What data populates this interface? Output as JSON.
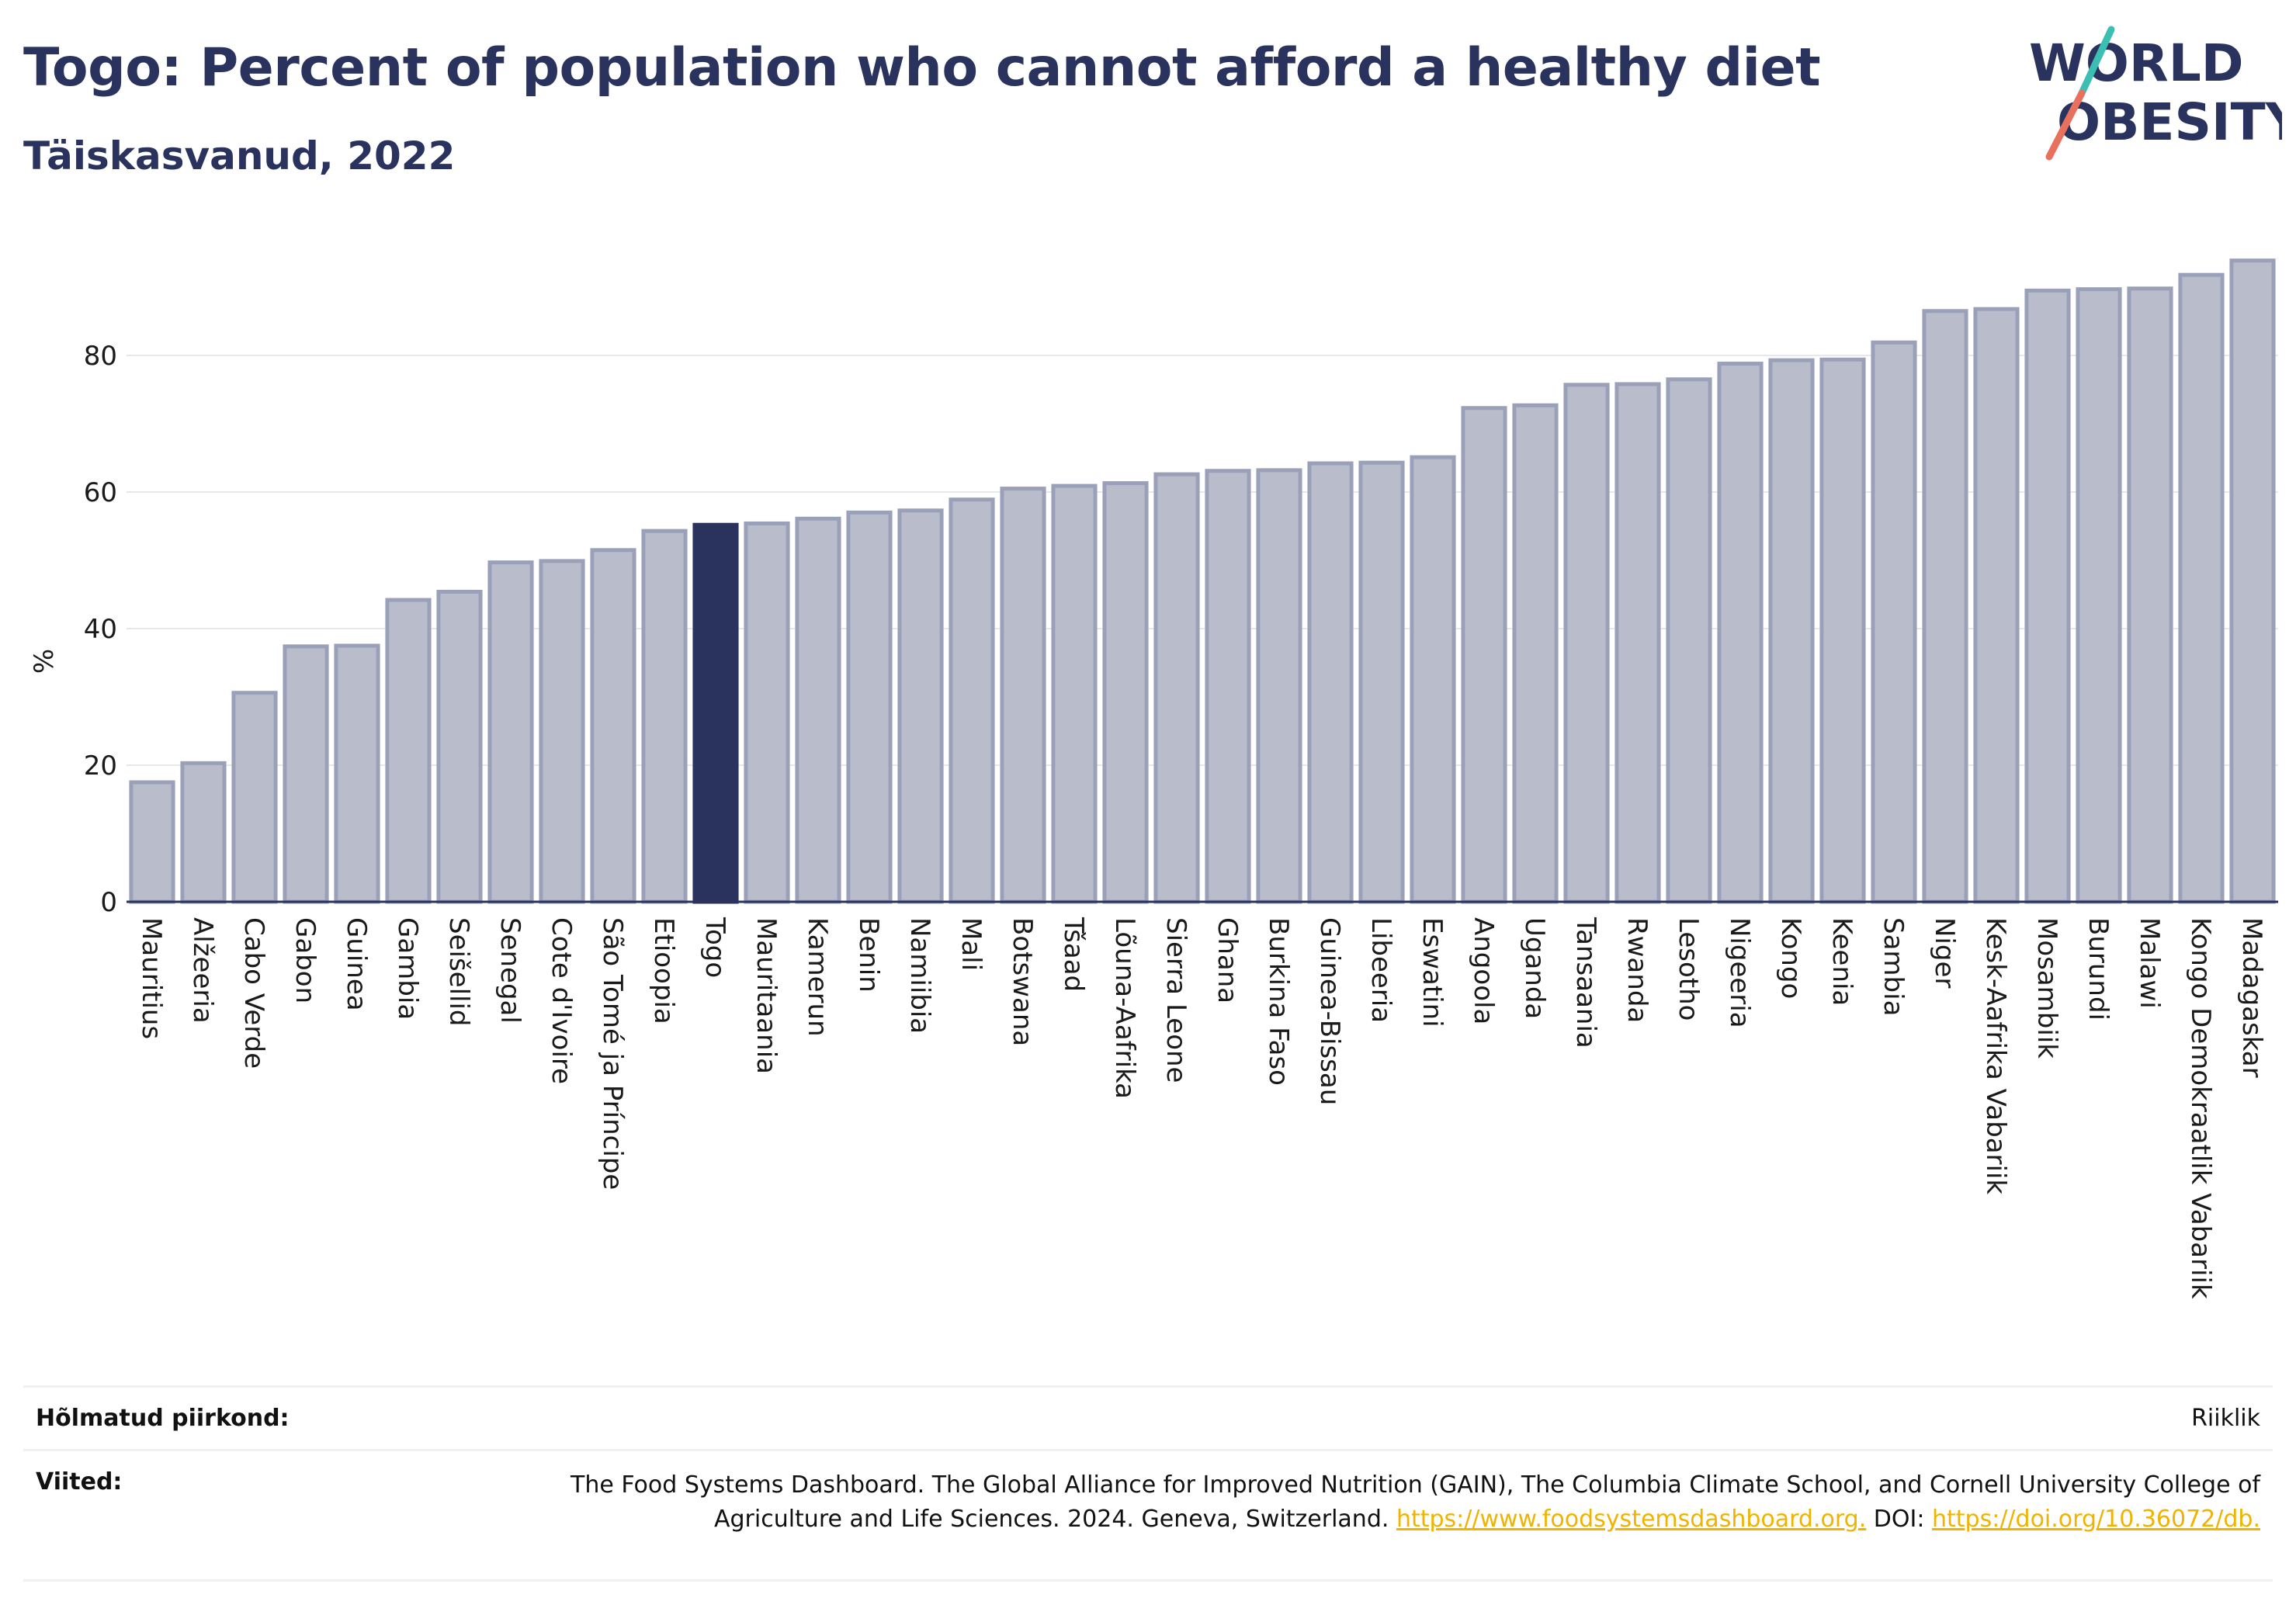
{
  "title": "Togo: Percent of population who cannot afford a healthy diet",
  "subtitle": "Täiskasvanud, 2022",
  "logo": {
    "line1": "WORLD",
    "line2": "OBESITY"
  },
  "colors": {
    "bar": "#b9bccb",
    "bar_stroke": "#9aa0b8",
    "highlight": "#2a335e",
    "grid": "#e6e8ef",
    "link": "#f0b400"
  },
  "chart_data": {
    "type": "bar",
    "ylabel": "%",
    "ylim": [
      0,
      100
    ],
    "yticks": [
      0,
      20,
      40,
      60,
      80
    ],
    "grid": true,
    "highlight": "Togo",
    "categories": [
      "Mauritius",
      "Alžeeria",
      "Cabo Verde",
      "Gabon",
      "Guinea",
      "Gambia",
      "Seišellid",
      "Senegal",
      "Cote d'Ivoire",
      "São Tomé ja Príncipe",
      "Etioopia",
      "Togo",
      "Mauritaania",
      "Kamerun",
      "Benin",
      "Namiibia",
      "Mali",
      "Botswana",
      "Tšaad",
      "Lõuna-Aafrika",
      "Sierra Leone",
      "Ghana",
      "Burkina Faso",
      "Guinea-Bissau",
      "Libeeria",
      "Eswatini",
      "Angoola",
      "Uganda",
      "Tansaania",
      "Rwanda",
      "Lesotho",
      "Nigeeria",
      "Kongo",
      "Keenia",
      "Sambia",
      "Niger",
      "Kesk-Aafrika Vabariik",
      "Mosambiik",
      "Burundi",
      "Malawi",
      "Kongo Demokraatlik Vabariik",
      "Madagaskar"
    ],
    "values": [
      17.5,
      20.3,
      30.6,
      37.4,
      37.5,
      44.2,
      45.4,
      49.7,
      49.9,
      51.5,
      54.3,
      55.2,
      55.4,
      56.1,
      57.0,
      57.3,
      58.9,
      60.5,
      60.9,
      61.3,
      62.6,
      63.1,
      63.2,
      64.2,
      64.3,
      65.1,
      72.3,
      72.7,
      75.7,
      75.8,
      76.5,
      78.8,
      79.3,
      79.4,
      81.9,
      86.5,
      86.8,
      89.5,
      89.7,
      89.8,
      91.8,
      93.9
    ]
  },
  "footer": {
    "region_label": "Hõlmatud piirkond:",
    "region_value": "Riiklik",
    "refs_label": "Viited:",
    "refs_text1": "The Food Systems Dashboard. The Global Alliance for Improved Nutrition (GAIN), The Columbia Climate School, and Cornell University College of Agriculture and Life Sciences. 2024. Geneva, Switzerland. ",
    "refs_link1": "https://www.foodsystemsdashboard.org.",
    "refs_text2": " DOI: ",
    "refs_link2": "https://doi.org/10.36072/db."
  }
}
